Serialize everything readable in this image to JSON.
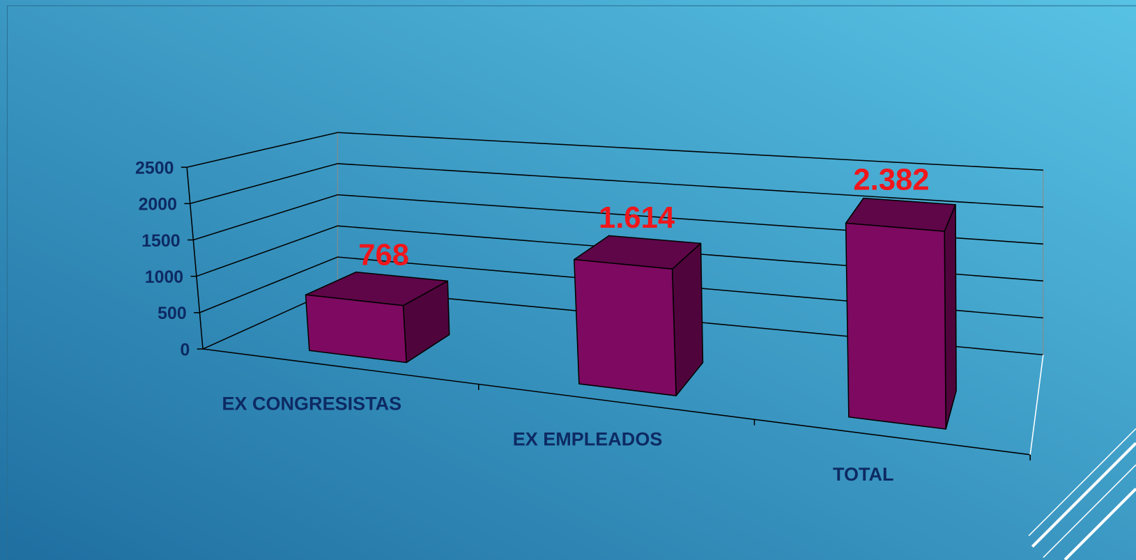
{
  "chart_data": {
    "type": "bar3d",
    "categories": [
      "EX CONGRESISTAS",
      "EX EMPLEADOS",
      "TOTAL"
    ],
    "values": [
      768,
      1614,
      2382
    ],
    "value_labels": [
      "768",
      "1.614",
      "2.382"
    ],
    "color": "#7d0a60",
    "ylim": [
      0,
      2500
    ],
    "yticks": [
      0,
      500,
      1000,
      1500,
      2000,
      2500
    ],
    "grid": true
  }
}
